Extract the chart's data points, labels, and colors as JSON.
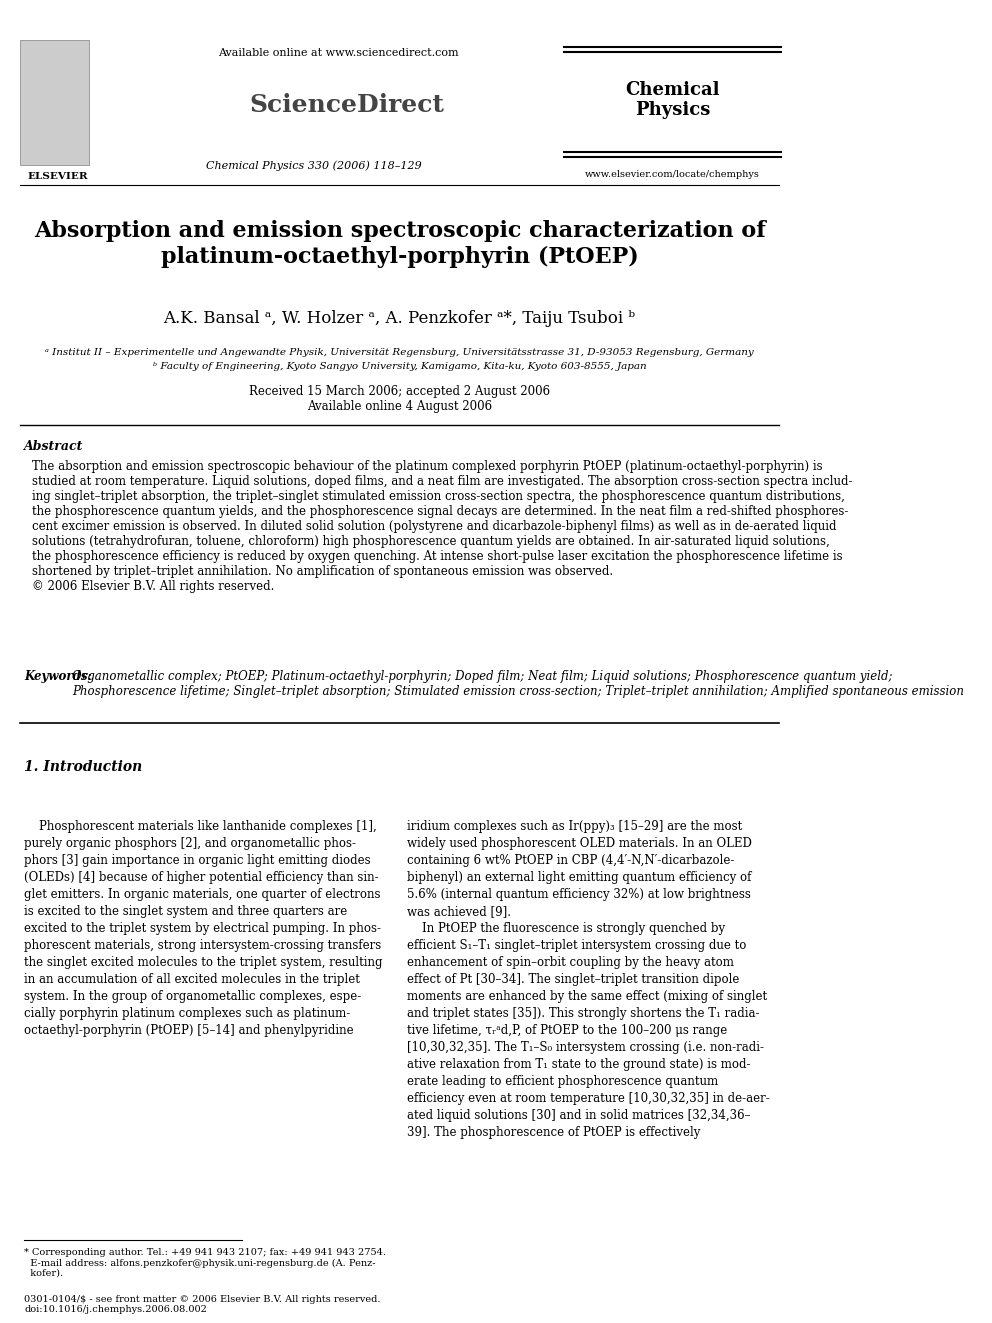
{
  "bg_color": "#ffffff",
  "header": {
    "available_online": "Available online at www.sciencedirect.com",
    "sciencedirect": "ScienceDirect",
    "journal_name": "Chemical\nPhysics",
    "journal_info": "Chemical Physics 330 (2006) 118–129",
    "journal_url": "www.elsevier.com/locate/chemphys",
    "elsevier_label": "ELSEVIER"
  },
  "title": "Absorption and emission spectroscopic characterization of\nplatinum-octaethyl-porphyrin (PtOEP)",
  "authors": "A.K. Bansal ᵃ, W. Holzer ᵃ, A. Penzkofer ᵃ*, Taiju Tsuboi ᵇ",
  "affil_a": "ᵃ Institut II – Experimentelle und Angewandte Physik, Universität Regensburg, Universitätsstrasse 31, D-93053 Regensburg, Germany",
  "affil_b": "ᵇ Faculty of Engineering, Kyoto Sangyo University, Kamigamo, Kita-ku, Kyoto 603-8555, Japan",
  "received": "Received 15 March 2006; accepted 2 August 2006",
  "available_online2": "Available online 4 August 2006",
  "abstract_label": "Abstract",
  "abstract_text": "The absorption and emission spectroscopic behaviour of the platinum complexed porphyrin PtOEP (platinum-octaethyl-porphyrin) is\nstudied at room temperature. Liquid solutions, doped films, and a neat film are investigated. The absorption cross-section spectra includ-\ning singlet–triplet absorption, the triplet–singlet stimulated emission cross-section spectra, the phosphorescence quantum distributions,\nthe phosphorescence quantum yields, and the phosphorescence signal decays are determined. In the neat film a red-shifted phosphores-\ncent excimer emission is observed. In diluted solid solution (polystyrene and dicarbazole-biphenyl films) as well as in de-aerated liquid\nsolutions (tetrahydrofuran, toluene, chloroform) high phosphorescence quantum yields are obtained. In air-saturated liquid solutions,\nthe phosphorescence efficiency is reduced by oxygen quenching. At intense short-pulse laser excitation the phosphorescence lifetime is\nshortened by triplet–triplet annihilation. No amplification of spontaneous emission was observed.\n© 2006 Elsevier B.V. All rights reserved.",
  "keywords_label": "Keywords:",
  "keywords_text": "Organometallic complex; PtOEP; Platinum-octaethyl-porphyrin; Doped film; Neat film; Liquid solutions; Phosphorescence quantum yield;\nPhosphorescence lifetime; Singlet–triplet absorption; Stimulated emission cross-section; Triplet–triplet annihilation; Amplified spontaneous emission",
  "section1_label": "1. Introduction",
  "intro_left": "    Phosphorescent materials like lanthanide complexes [1],\npurely organic phosphors [2], and organometallic phos-\nphors [3] gain importance in organic light emitting diodes\n(OLEDs) [4] because of higher potential efficiency than sin-\nglet emitters. In organic materials, one quarter of electrons\nis excited to the singlet system and three quarters are\nexcited to the triplet system by electrical pumping. In phos-\nphorescent materials, strong intersystem-crossing transfers\nthe singlet excited molecules to the triplet system, resulting\nin an accumulation of all excited molecules in the triplet\nsystem. In the group of organometallic complexes, espe-\ncially porphyrin platinum complexes such as platinum-\noctaethyl-porphyrin (PtOEP) [5–14] and phenylpyridine",
  "intro_right": "iridium complexes such as Ir(ppy)₃ [15–29] are the most\nwidely used phosphorescent OLED materials. In an OLED\ncontaining 6 wt% PtOEP in CBP (4,4′-N,N′-dicarbazole-\nbiphenyl) an external light emitting quantum efficiency of\n5.6% (internal quantum efficiency 32%) at low brightness\nwas achieved [9].\n    In PtOEP the fluorescence is strongly quenched by\nefficient S₁–T₁ singlet–triplet intersystem crossing due to\nenhancement of spin–orbit coupling by the heavy atom\neffect of Pt [30–34]. The singlet–triplet transition dipole\nmoments are enhanced by the same effect (mixing of singlet\nand triplet states [35]). This strongly shortens the T₁ radia-\ntive lifetime, τᵣᵃd,P, of PtOEP to the 100–200 μs range\n[10,30,32,35]. The T₁–S₀ intersystem crossing (i.e. non-radi-\native relaxation from T₁ state to the ground state) is mod-\nerate leading to efficient phosphorescence quantum\nefficiency even at room temperature [10,30,32,35] in de-aer-\nated liquid solutions [30] and in solid matrices [32,34,36–\n39]. The phosphorescence of PtOEP is effectively",
  "footnote_star": "* Corresponding author. Tel.: +49 941 943 2107; fax: +49 941 943 2754.\n  E-mail address: alfons.penzkofer@physik.uni-regensburg.de (A. Penz-\n  kofer).",
  "footnote_bottom": "0301-0104/$ - see front matter © 2006 Elsevier B.V. All rights reserved.\ndoi:10.1016/j.chemphys.2006.08.002"
}
